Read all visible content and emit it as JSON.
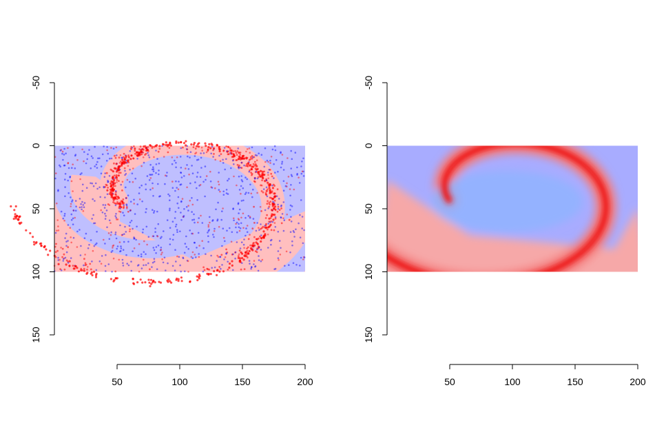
{
  "chart_data": [
    {
      "type": "heatmap",
      "title": "",
      "xlabel": "",
      "ylabel": "",
      "xlim": [
        0,
        200
      ],
      "ylim": [
        -50,
        150
      ],
      "y_reversed": true,
      "x_ticks": [
        50,
        100,
        150,
        200
      ],
      "y_ticks": [
        -50,
        0,
        50,
        100,
        150
      ],
      "x_tick_labels": [
        "50",
        "100",
        "150",
        "200"
      ],
      "y_tick_labels": [
        "-50",
        "0",
        "50",
        "100",
        "150"
      ],
      "image_extent": {
        "x": [
          0,
          200
        ],
        "y": [
          0,
          100
        ]
      },
      "classes": [
        {
          "color": "#ff0000",
          "region_color": "#ffbfbf"
        },
        {
          "color": "#0000ff",
          "region_color": "#bfbfff"
        }
      ],
      "spiral_center": [
        90,
        40
      ],
      "overlay": "scatter points of both classes drawn over a hard class-region map"
    },
    {
      "type": "heatmap",
      "title": "",
      "xlabel": "",
      "ylabel": "",
      "xlim": [
        0,
        200
      ],
      "ylim": [
        -50,
        150
      ],
      "y_reversed": true,
      "x_ticks": [
        50,
        100,
        150,
        200
      ],
      "y_ticks": [
        -50,
        0,
        50,
        100,
        150
      ],
      "x_tick_labels": [
        "50",
        "100",
        "150",
        "200"
      ],
      "y_tick_labels": [
        "-50",
        "0",
        "50",
        "100",
        "150"
      ],
      "image_extent": {
        "x": [
          0,
          200
        ],
        "y": [
          0,
          100
        ]
      },
      "classes": [
        {
          "color": "#ff0000",
          "region_color": "#ffbfbf"
        },
        {
          "color": "#0000ff",
          "region_color": "#bfbfff"
        }
      ],
      "spiral_center": [
        90,
        40
      ],
      "overlay": "smooth soft class-probability map, no points"
    }
  ]
}
